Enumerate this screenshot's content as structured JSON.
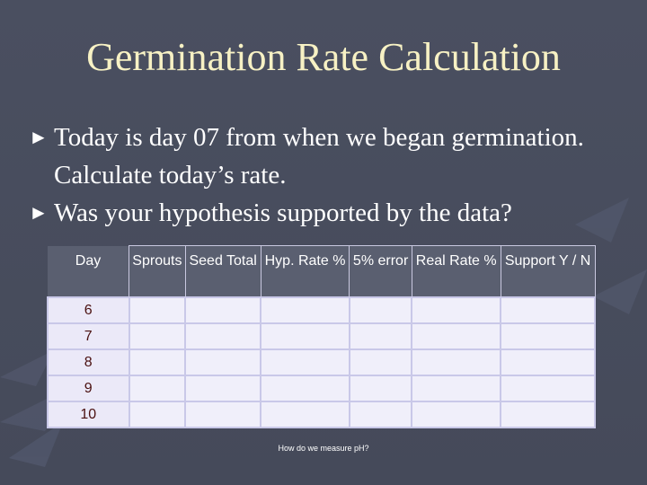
{
  "slide": {
    "title": "Germination Rate Calculation",
    "bullets": [
      "Today is day 07 from when we began germination. Calculate today’s rate.",
      "Was your hypothesis supported by the data?"
    ],
    "bullet_icon": "right-triangle-pointer",
    "footnote": "How do we measure pH?"
  },
  "table": {
    "headers": [
      "Day",
      "Sprouts",
      "Seed Total",
      "Hyp. Rate %",
      "5% error",
      "Real Rate %",
      "Support Y / N"
    ],
    "rows": [
      {
        "day": "6"
      },
      {
        "day": "7"
      },
      {
        "day": "8"
      },
      {
        "day": "9"
      },
      {
        "day": "10"
      }
    ]
  },
  "colors": {
    "background": "#4a4f60",
    "title": "#f7f1c4",
    "cell_fill": "#f0effa",
    "cell_border": "#c9c8e8",
    "day_text": "#4a1010"
  }
}
